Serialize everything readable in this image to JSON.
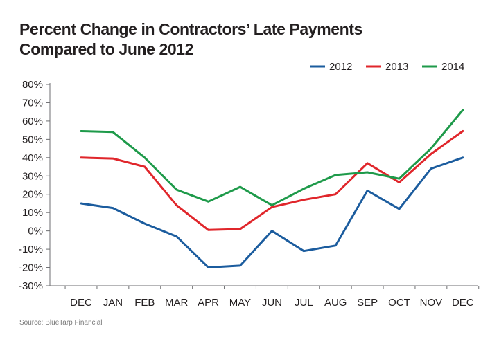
{
  "chart_data": {
    "type": "line",
    "title_lines": [
      "Percent Change in Contractors’ Late Payments",
      "Compared to June 2012"
    ],
    "source": "Source: BlueTarp Financial",
    "categories": [
      "DEC",
      "JAN",
      "FEB",
      "MAR",
      "APR",
      "MAY",
      "JUN",
      "JUL",
      "AUG",
      "SEP",
      "OCT",
      "NOV",
      "DEC"
    ],
    "y_ticks": [
      -30,
      -20,
      -10,
      0,
      10,
      20,
      30,
      40,
      50,
      60,
      70,
      80
    ],
    "y_unit": "%",
    "ylim": [
      -30,
      80
    ],
    "grid": false,
    "legend_position": "top-right",
    "series": [
      {
        "name": "2012",
        "color": "#1b5c9e",
        "values": [
          15,
          12.5,
          4,
          -3,
          -20,
          -19,
          0,
          -11,
          -8,
          22,
          12,
          34,
          40
        ]
      },
      {
        "name": "2013",
        "color": "#e0262b",
        "values": [
          40,
          39.5,
          35,
          14,
          0.5,
          1,
          13,
          17,
          20,
          37,
          26.5,
          42,
          54.5
        ]
      },
      {
        "name": "2014",
        "color": "#1e9a4a",
        "values": [
          54.5,
          54,
          40,
          22.5,
          16,
          24,
          14,
          23,
          30.5,
          32,
          28.5,
          45,
          66
        ]
      }
    ]
  }
}
